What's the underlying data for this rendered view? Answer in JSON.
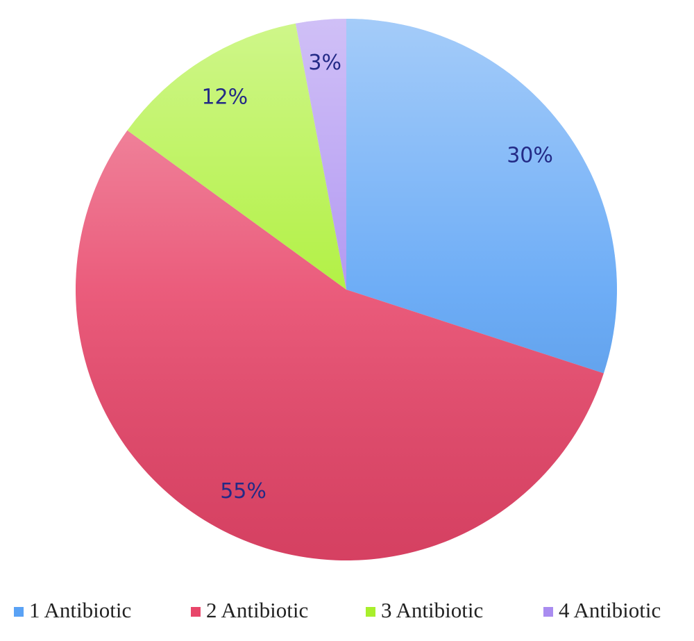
{
  "chart_data": {
    "type": "pie",
    "categories": [
      "1 Antibiotic",
      "2 Antibiotic",
      "3 Antibiotic",
      "4 Antibiotic"
    ],
    "values": [
      30,
      55,
      12,
      3
    ],
    "value_labels": [
      "30%",
      "55%",
      "12%",
      "3%"
    ],
    "colors": [
      "#5aa2f5",
      "#e8466a",
      "#a8ef2c",
      "#a98cf0"
    ]
  }
}
